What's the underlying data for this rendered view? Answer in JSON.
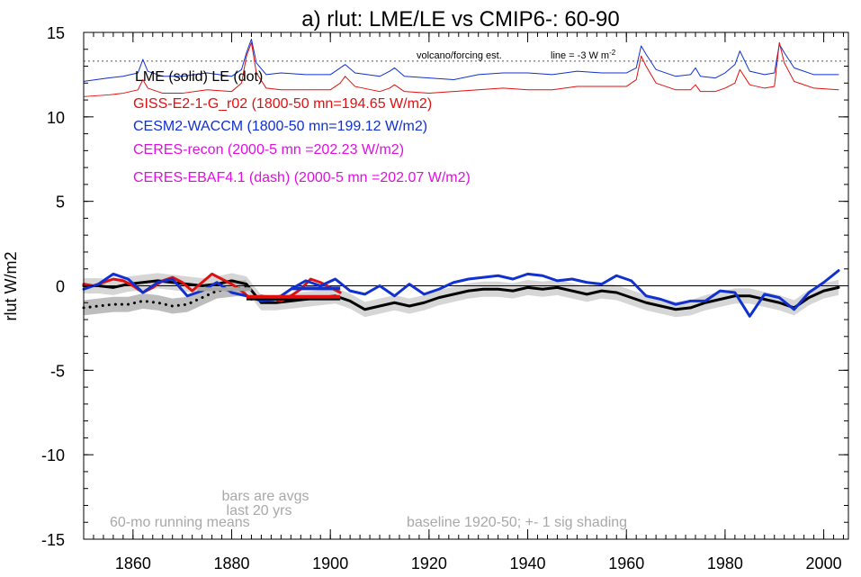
{
  "chart_data": {
    "type": "line",
    "title": "a) rlut: LME/LE vs CMIP6-: 60-90",
    "ylabel": "rlut W/m2",
    "xlabel": "",
    "xlim": [
      1850,
      2005
    ],
    "ylim": [
      -15,
      15
    ],
    "x_ticks": [
      1860,
      1880,
      1900,
      1920,
      1940,
      1960,
      1980,
      2000
    ],
    "y_ticks": [
      -15,
      -10,
      -5,
      0,
      5,
      10,
      15
    ],
    "x_minor_step": 2,
    "y_minor_step": 1,
    "grid": false,
    "colors": {
      "red": "#e01010",
      "blue": "#1030d0",
      "black": "#000000",
      "magenta": "#e010e0",
      "gray": "#a8a8a8",
      "shade": "#c8c8c8"
    },
    "legend": [
      {
        "text": "LME (solid)   LE (dot)",
        "color": "#000000"
      },
      {
        "text": "GISS-E2-1-G_r02 (1800-50 mn=194.65 W/m2)",
        "color": "#e01010"
      },
      {
        "text": "CESM2-WACCM (1800-50 mn=199.12 W/m2)",
        "color": "#1030d0"
      },
      {
        "text": "CERES-recon (2000-5 mn =202.23 W/m2)",
        "color": "#e010e0"
      },
      {
        "text": "CERES-EBAF4.1 (dash) (2000-5 mn =202.07 W/m2)",
        "color": "#e010e0"
      }
    ],
    "annotations": {
      "volcano": "volcano/forcing est.",
      "line_note": "line = -3 W m",
      "line_note_sup": "-2",
      "bars_note_1": "bars are avgs",
      "bars_note_2": "last 20 yrs",
      "running_means": "60-mo running means",
      "baseline": "baseline 1920-50; +- 1 sig shading"
    },
    "reference_line_y": 13.3,
    "zero_line_y": 0,
    "series": [
      {
        "name": "LME (solid)",
        "style": "solid",
        "color": "black",
        "x": [
          1850,
          1853,
          1856,
          1859,
          1862,
          1865,
          1868,
          1871,
          1874,
          1877,
          1880,
          1883,
          1886,
          1889,
          1892,
          1895,
          1898,
          1901,
          1904,
          1907,
          1910,
          1913,
          1916,
          1919,
          1922,
          1925,
          1928,
          1931,
          1934,
          1937,
          1940,
          1943,
          1946,
          1949,
          1952,
          1955,
          1958,
          1961,
          1964,
          1967,
          1970,
          1973,
          1976,
          1979,
          1982,
          1985,
          1988,
          1991,
          1994,
          1997,
          2000,
          2003
        ],
        "y": [
          0.0,
          0.0,
          -0.1,
          0.1,
          0.2,
          0.3,
          0.2,
          0.1,
          0.0,
          0.1,
          0.3,
          0.1,
          -1.0,
          -1.0,
          -0.9,
          -0.8,
          -0.7,
          -0.6,
          -0.9,
          -1.4,
          -1.2,
          -1.0,
          -1.2,
          -1.0,
          -0.7,
          -0.5,
          -0.3,
          -0.2,
          -0.2,
          -0.3,
          -0.1,
          -0.2,
          -0.1,
          -0.3,
          -0.5,
          -0.3,
          -0.4,
          -0.7,
          -1.0,
          -1.2,
          -1.4,
          -1.3,
          -1.0,
          -0.8,
          -0.6,
          -0.6,
          -0.8,
          -1.0,
          -1.3,
          -0.7,
          -0.3,
          -0.1
        ]
      },
      {
        "name": "LE (dot)",
        "style": "dot",
        "color": "black",
        "x": [
          1850,
          1853,
          1856,
          1859,
          1862,
          1865,
          1868,
          1871,
          1874,
          1877,
          1880,
          1883
        ],
        "y": [
          -1.3,
          -1.2,
          -1.1,
          -1.1,
          -0.9,
          -1.0,
          -1.2,
          -1.1,
          -0.7,
          -0.3,
          -0.2,
          -0.1
        ]
      },
      {
        "name": "GISS-E2-1-G_r02",
        "style": "solid",
        "color": "red",
        "x": [
          1850,
          1852,
          1854,
          1856,
          1858,
          1860,
          1862,
          1864,
          1866,
          1868,
          1870,
          1872,
          1874,
          1876,
          1878,
          1880,
          1882,
          1884,
          1886,
          1888,
          1890,
          1892,
          1894,
          1896,
          1898,
          1900,
          1902
        ],
        "y": [
          0.1,
          0.0,
          0.2,
          0.4,
          0.3,
          0.0,
          -0.4,
          -0.1,
          0.3,
          0.5,
          0.2,
          -0.3,
          0.2,
          0.7,
          0.4,
          0.1,
          -0.3,
          -0.8,
          -0.6,
          -0.7,
          -0.9,
          -0.6,
          -0.2,
          0.4,
          0.2,
          -0.1,
          -0.4
        ]
      },
      {
        "name": "CESM2-WACCM",
        "style": "solid",
        "color": "blue",
        "x": [
          1850,
          1853,
          1856,
          1859,
          1862,
          1865,
          1868,
          1871,
          1874,
          1877,
          1880,
          1883,
          1886,
          1889,
          1892,
          1895,
          1898,
          1901,
          1904,
          1907,
          1910,
          1913,
          1916,
          1919,
          1922,
          1925,
          1928,
          1931,
          1934,
          1937,
          1940,
          1943,
          1946,
          1949,
          1952,
          1955,
          1958,
          1961,
          1964,
          1967,
          1970,
          1973,
          1976,
          1979,
          1982,
          1985,
          1988,
          1991,
          1994,
          1997,
          2000,
          2003
        ],
        "y": [
          -0.2,
          0.1,
          0.7,
          0.4,
          -0.4,
          0.2,
          0.4,
          -0.6,
          -0.3,
          0.2,
          -0.4,
          -0.6,
          -0.9,
          -0.8,
          -0.2,
          0.3,
          0.0,
          0.4,
          -0.3,
          -0.5,
          0.0,
          -0.6,
          0.1,
          -0.5,
          -0.2,
          0.2,
          0.4,
          0.5,
          0.6,
          0.4,
          0.7,
          0.6,
          0.3,
          0.4,
          0.2,
          0.1,
          0.6,
          0.3,
          -0.6,
          -0.8,
          -1.1,
          -0.9,
          -0.9,
          -0.3,
          -0.4,
          -1.8,
          -0.5,
          -0.7,
          -1.4,
          -0.4,
          0.2,
          0.9
        ]
      },
      {
        "name": "CESM2-WACCM volcano/forcing",
        "style": "thin",
        "color": "blue",
        "x": [
          1850,
          1855,
          1858,
          1861,
          1862,
          1863,
          1866,
          1870,
          1875,
          1880,
          1882,
          1883,
          1884,
          1885,
          1887,
          1890,
          1895,
          1900,
          1902,
          1903,
          1905,
          1910,
          1912,
          1913,
          1915,
          1920,
          1925,
          1930,
          1935,
          1940,
          1945,
          1950,
          1955,
          1960,
          1962,
          1963,
          1964,
          1966,
          1970,
          1973,
          1974,
          1975,
          1978,
          1980,
          1982,
          1983,
          1985,
          1988,
          1990,
          1991,
          1992,
          1994,
          1998,
          2003
        ],
        "y": [
          12.1,
          12.3,
          12.4,
          12.6,
          13.4,
          12.7,
          12.4,
          12.4,
          12.6,
          12.4,
          12.8,
          13.8,
          14.6,
          13.2,
          12.5,
          12.6,
          12.5,
          12.5,
          12.9,
          13.1,
          12.6,
          12.4,
          12.7,
          12.9,
          12.4,
          12.3,
          12.2,
          12.5,
          12.6,
          12.6,
          12.5,
          12.7,
          12.6,
          12.6,
          12.9,
          14.2,
          13.7,
          12.8,
          12.4,
          12.5,
          12.9,
          12.4,
          12.3,
          12.6,
          13.1,
          13.9,
          12.7,
          12.5,
          12.6,
          14.3,
          13.8,
          12.9,
          12.5,
          12.5
        ]
      },
      {
        "name": "GISS-E2-1-G_r02 volcano/forcing",
        "style": "thin",
        "color": "red",
        "x": [
          1850,
          1855,
          1858,
          1861,
          1862,
          1863,
          1866,
          1870,
          1875,
          1880,
          1882,
          1883,
          1884,
          1885,
          1887,
          1890,
          1895,
          1900,
          1902,
          1903,
          1905,
          1910,
          1912,
          1913,
          1915,
          1920,
          1925,
          1930,
          1935,
          1940,
          1945,
          1950,
          1955,
          1960,
          1962,
          1963,
          1964,
          1966,
          1970,
          1973,
          1974,
          1975,
          1978,
          1980,
          1982,
          1983,
          1985,
          1988,
          1990,
          1991,
          1992,
          1994,
          1998,
          2003
        ],
        "y": [
          11.2,
          11.3,
          11.4,
          11.6,
          12.2,
          11.7,
          11.4,
          11.4,
          11.6,
          11.5,
          12.0,
          13.6,
          14.4,
          12.6,
          11.7,
          11.6,
          11.6,
          11.6,
          12.0,
          12.4,
          11.8,
          11.5,
          11.7,
          11.9,
          11.5,
          11.4,
          11.5,
          11.6,
          11.7,
          11.6,
          11.6,
          11.8,
          11.8,
          11.8,
          12.2,
          13.6,
          13.0,
          12.0,
          11.6,
          11.6,
          11.9,
          11.5,
          11.5,
          11.7,
          12.0,
          12.8,
          11.9,
          11.7,
          11.8,
          14.4,
          13.2,
          12.1,
          11.7,
          11.6
        ]
      }
    ],
    "bars": [
      {
        "name": "LME bar",
        "color": "black",
        "x0": 1883,
        "x1": 1902,
        "y": -0.75
      },
      {
        "name": "GISS bar",
        "color": "red",
        "x0": 1883,
        "x1": 1902,
        "y": -0.65
      },
      {
        "name": "CESM2 bar",
        "color": "blue",
        "x0": 1892,
        "x1": 1902,
        "y": -0.15
      },
      {
        "name": "LE bar",
        "color": "gray",
        "x0": 1873,
        "x1": 1884,
        "y": -0.2
      }
    ],
    "shading": [
      {
        "name": "LME shading",
        "series": "LME (solid)",
        "sigma": 0.45
      },
      {
        "name": "LE shading",
        "series": "LE (dot)",
        "sigma": 0.45
      }
    ]
  }
}
